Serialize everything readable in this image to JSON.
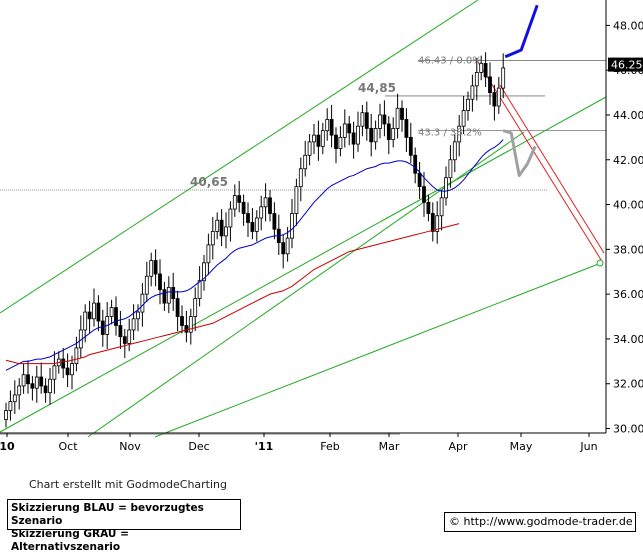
{
  "chart_data": {
    "type": "candlestick",
    "x_labels": [
      "10",
      "Oct",
      "Nov",
      "Dec",
      "'11",
      "Feb",
      "Mar",
      "Apr",
      "May",
      "Jun"
    ],
    "y_ticks": [
      "30.00",
      "32.00",
      "34.00",
      "36.00",
      "38.00",
      "40.00",
      "42.00",
      "44.00",
      "46.00",
      "48.00"
    ],
    "ylim": [
      29.8,
      49.0
    ],
    "current_price": "46.25",
    "price_labels": [
      {
        "text": "40,65",
        "value": 40.65
      },
      {
        "text": "44,85",
        "value": 44.85
      }
    ],
    "fib_labels": [
      {
        "text": "46.43 / 0.0%",
        "value": 46.43
      },
      {
        "text": "43.3 / 38.2%",
        "value": 43.3
      }
    ],
    "candle_closes": [
      30.8,
      31.2,
      31.5,
      31.9,
      32.4,
      32.0,
      31.8,
      32.3,
      31.9,
      31.6,
      32.2,
      32.8,
      33.1,
      32.7,
      32.4,
      32.9,
      33.6,
      34.4,
      35.2,
      34.9,
      35.6,
      34.8,
      34.2,
      35.0,
      35.4,
      34.6,
      34.1,
      33.8,
      34.4,
      34.9,
      35.2,
      36.0,
      36.8,
      37.5,
      36.9,
      36.2,
      35.6,
      36.3,
      35.8,
      35.0,
      34.6,
      34.3,
      35.0,
      35.8,
      36.6,
      37.4,
      38.2,
      38.8,
      39.3,
      38.6,
      39.0,
      39.8,
      40.4,
      40.1,
      39.6,
      39.2,
      38.8,
      39.4,
      39.9,
      40.3,
      39.6,
      38.9,
      38.3,
      37.8,
      38.5,
      39.6,
      40.8,
      41.6,
      42.2,
      42.8,
      43.1,
      42.6,
      43.3,
      43.8,
      43.1,
      42.5,
      43.0,
      43.6,
      43.2,
      42.7,
      43.5,
      44.1,
      43.4,
      42.8,
      43.4,
      44.0,
      43.6,
      42.9,
      43.4,
      44.3,
      43.8,
      43.0,
      42.2,
      41.4,
      40.8,
      40.1,
      39.6,
      38.8,
      39.5,
      40.3,
      41.2,
      42.0,
      42.8,
      43.5,
      44.2,
      44.7,
      45.3,
      45.9,
      46.3,
      45.7,
      45.0,
      44.4,
      45.2,
      46.1
    ],
    "series": [
      {
        "name": "",
        "color": "#0000c8",
        "values": [
          32.6,
          32.7,
          32.8,
          32.9,
          33.0,
          33.0,
          33.05,
          33.1,
          33.1,
          33.15,
          33.2,
          33.3,
          33.4,
          33.5,
          33.6,
          33.7,
          33.8,
          33.95,
          34.1,
          34.25,
          34.4,
          34.5,
          34.55,
          34.6,
          34.7,
          34.8,
          34.85,
          34.9,
          35.0,
          35.15,
          35.3,
          35.5,
          35.7,
          35.85,
          35.95,
          36.0,
          36.05,
          36.1,
          36.1,
          36.1,
          36.1,
          36.15,
          36.25,
          36.4,
          36.55,
          36.7,
          36.9,
          37.1,
          37.3,
          37.45,
          37.6,
          37.8,
          37.95,
          38.05,
          38.1,
          38.15,
          38.2,
          38.3,
          38.4,
          38.5,
          38.55,
          38.6,
          38.6,
          38.65,
          38.75,
          38.9,
          39.1,
          39.35,
          39.6,
          39.85,
          40.1,
          40.3,
          40.5,
          40.7,
          40.85,
          40.95,
          41.05,
          41.15,
          41.25,
          41.3,
          41.4,
          41.5,
          41.6,
          41.65,
          41.7,
          41.8,
          41.85,
          41.85,
          41.9,
          41.95,
          41.95,
          41.9,
          41.8,
          41.65,
          41.45,
          41.2,
          41.0,
          40.8,
          40.65,
          40.6,
          40.6,
          40.65,
          40.75,
          40.9,
          41.1,
          41.35,
          41.6,
          41.85,
          42.1,
          42.3,
          42.45,
          42.55,
          42.7,
          42.9
        ]
      },
      {
        "name": "",
        "color": "#c80000",
        "values": [
          33.05,
          33.0,
          32.95,
          32.9,
          32.9,
          32.9,
          32.9,
          32.9,
          32.9,
          32.9,
          32.9,
          32.9,
          32.95,
          33.0,
          33.0,
          33.05,
          33.1,
          33.15,
          33.2,
          33.3,
          33.35,
          33.4,
          33.45,
          33.5,
          33.55,
          33.6,
          33.65,
          33.7,
          33.75,
          33.8,
          33.85,
          33.9,
          33.95,
          34.0,
          34.05,
          34.1,
          34.15,
          34.2,
          34.25,
          34.3,
          34.35,
          34.4,
          34.45,
          34.5,
          34.55,
          34.6,
          34.65,
          34.7,
          34.8,
          34.9,
          35.0,
          35.1,
          35.2,
          35.3,
          35.4,
          35.5,
          35.6,
          35.7,
          35.8,
          35.9,
          36.0,
          36.05,
          36.1,
          36.15,
          36.25,
          36.35,
          36.5,
          36.65,
          36.8,
          36.95,
          37.1,
          37.2,
          37.3,
          37.4,
          37.5,
          37.6,
          37.7,
          37.8,
          37.9,
          37.95,
          38.0,
          38.05,
          38.1,
          38.15,
          38.2,
          38.25,
          38.3,
          38.35,
          38.4,
          38.45,
          38.5,
          38.55,
          38.6,
          38.65,
          38.7,
          38.75,
          38.8,
          38.85,
          38.9,
          38.95,
          39.0,
          39.05,
          39.1,
          39.15
        ]
      }
    ],
    "scenario_blue": [
      [
        0,
        46.6
      ],
      [
        2,
        46.9
      ],
      [
        3,
        47.9
      ],
      [
        4,
        48.9
      ]
    ],
    "scenario_gray": [
      [
        0,
        43.3
      ],
      [
        2,
        43.2
      ],
      [
        4,
        41.3
      ],
      [
        6,
        41.8
      ],
      [
        8,
        42.6
      ]
    ],
    "grid": false
  },
  "texts": {
    "credit": "Chart erstellt mit GodmodeCharting",
    "legend_line1": "Skizzierung BLAU = bevorzugtes Szenario",
    "legend_line2": "Skizzierung GRAU = Alternativszenario",
    "url": "© http://www.godmode-trader.de"
  }
}
